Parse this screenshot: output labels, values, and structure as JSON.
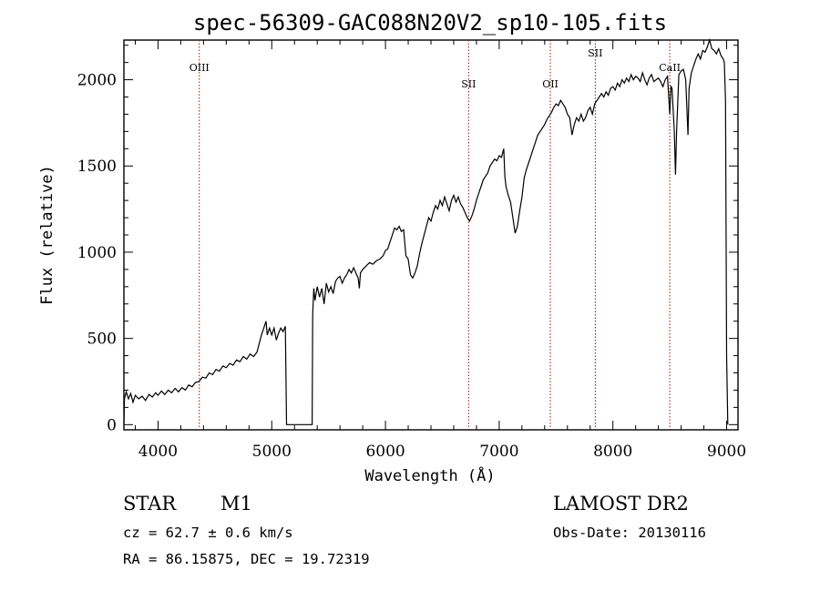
{
  "chart_data": {
    "type": "line",
    "title": "spec-56309-GAC088N20V2_sp10-105.fits",
    "xlabel": "Wavelength (Å)",
    "ylabel": "Flux (relative)",
    "xlim": [
      3700,
      9100
    ],
    "ylim": [
      -30,
      2230
    ],
    "xticks": [
      4000,
      5000,
      6000,
      7000,
      8000,
      9000
    ],
    "yticks": [
      0,
      500,
      1000,
      1500,
      2000
    ],
    "grid": false,
    "line_color": "#000000",
    "marker_color": "#8b1a1a",
    "series": [
      {
        "points": [
          [
            3700,
            10
          ],
          [
            3705,
            150
          ],
          [
            3720,
            190
          ],
          [
            3740,
            150
          ],
          [
            3760,
            180
          ],
          [
            3780,
            130
          ],
          [
            3800,
            170
          ],
          [
            3830,
            150
          ],
          [
            3860,
            165
          ],
          [
            3890,
            140
          ],
          [
            3920,
            175
          ],
          [
            3950,
            160
          ],
          [
            3980,
            185
          ],
          [
            4000,
            170
          ],
          [
            4030,
            195
          ],
          [
            4060,
            175
          ],
          [
            4090,
            200
          ],
          [
            4120,
            185
          ],
          [
            4150,
            210
          ],
          [
            4180,
            190
          ],
          [
            4210,
            215
          ],
          [
            4240,
            200
          ],
          [
            4270,
            230
          ],
          [
            4300,
            220
          ],
          [
            4330,
            245
          ],
          [
            4360,
            250
          ],
          [
            4390,
            275
          ],
          [
            4420,
            270
          ],
          [
            4450,
            300
          ],
          [
            4480,
            290
          ],
          [
            4510,
            320
          ],
          [
            4540,
            310
          ],
          [
            4570,
            340
          ],
          [
            4600,
            330
          ],
          [
            4630,
            355
          ],
          [
            4660,
            345
          ],
          [
            4690,
            375
          ],
          [
            4720,
            365
          ],
          [
            4750,
            395
          ],
          [
            4780,
            380
          ],
          [
            4810,
            410
          ],
          [
            4840,
            395
          ],
          [
            4870,
            420
          ],
          [
            4890,
            470
          ],
          [
            4910,
            520
          ],
          [
            4930,
            560
          ],
          [
            4950,
            600
          ],
          [
            4960,
            520
          ],
          [
            4980,
            560
          ],
          [
            5000,
            520
          ],
          [
            5020,
            560
          ],
          [
            5040,
            490
          ],
          [
            5060,
            530
          ],
          [
            5080,
            560
          ],
          [
            5100,
            540
          ],
          [
            5120,
            570
          ],
          [
            5130,
            0
          ],
          [
            5355,
            0
          ],
          [
            5360,
            640
          ],
          [
            5370,
            790
          ],
          [
            5380,
            720
          ],
          [
            5400,
            800
          ],
          [
            5420,
            740
          ],
          [
            5440,
            790
          ],
          [
            5460,
            700
          ],
          [
            5480,
            820
          ],
          [
            5500,
            770
          ],
          [
            5520,
            800
          ],
          [
            5540,
            760
          ],
          [
            5560,
            830
          ],
          [
            5580,
            850
          ],
          [
            5600,
            860
          ],
          [
            5620,
            820
          ],
          [
            5640,
            850
          ],
          [
            5660,
            870
          ],
          [
            5680,
            900
          ],
          [
            5700,
            880
          ],
          [
            5720,
            910
          ],
          [
            5740,
            880
          ],
          [
            5760,
            850
          ],
          [
            5770,
            790
          ],
          [
            5780,
            880
          ],
          [
            5800,
            900
          ],
          [
            5830,
            920
          ],
          [
            5860,
            940
          ],
          [
            5890,
            930
          ],
          [
            5920,
            950
          ],
          [
            5950,
            960
          ],
          [
            5980,
            980
          ],
          [
            6000,
            1010
          ],
          [
            6020,
            1020
          ],
          [
            6040,
            1060
          ],
          [
            6060,
            1100
          ],
          [
            6080,
            1140
          ],
          [
            6100,
            1130
          ],
          [
            6120,
            1150
          ],
          [
            6140,
            1120
          ],
          [
            6160,
            1130
          ],
          [
            6180,
            980
          ],
          [
            6200,
            960
          ],
          [
            6220,
            870
          ],
          [
            6240,
            850
          ],
          [
            6260,
            880
          ],
          [
            6280,
            920
          ],
          [
            6300,
            990
          ],
          [
            6320,
            1050
          ],
          [
            6340,
            1100
          ],
          [
            6360,
            1150
          ],
          [
            6380,
            1200
          ],
          [
            6400,
            1180
          ],
          [
            6420,
            1230
          ],
          [
            6440,
            1270
          ],
          [
            6460,
            1250
          ],
          [
            6480,
            1300
          ],
          [
            6500,
            1270
          ],
          [
            6520,
            1320
          ],
          [
            6540,
            1280
          ],
          [
            6560,
            1240
          ],
          [
            6580,
            1300
          ],
          [
            6600,
            1330
          ],
          [
            6620,
            1290
          ],
          [
            6640,
            1320
          ],
          [
            6660,
            1280
          ],
          [
            6680,
            1260
          ],
          [
            6700,
            1230
          ],
          [
            6720,
            1200
          ],
          [
            6740,
            1180
          ],
          [
            6760,
            1210
          ],
          [
            6780,
            1250
          ],
          [
            6800,
            1300
          ],
          [
            6820,
            1340
          ],
          [
            6840,
            1380
          ],
          [
            6860,
            1420
          ],
          [
            6880,
            1440
          ],
          [
            6900,
            1460
          ],
          [
            6920,
            1500
          ],
          [
            6940,
            1520
          ],
          [
            6960,
            1540
          ],
          [
            6980,
            1530
          ],
          [
            7000,
            1560
          ],
          [
            7020,
            1550
          ],
          [
            7040,
            1600
          ],
          [
            7050,
            1440
          ],
          [
            7060,
            1380
          ],
          [
            7080,
            1330
          ],
          [
            7100,
            1290
          ],
          [
            7120,
            1200
          ],
          [
            7140,
            1110
          ],
          [
            7160,
            1150
          ],
          [
            7180,
            1240
          ],
          [
            7200,
            1320
          ],
          [
            7220,
            1430
          ],
          [
            7240,
            1480
          ],
          [
            7260,
            1520
          ],
          [
            7280,
            1560
          ],
          [
            7300,
            1600
          ],
          [
            7320,
            1640
          ],
          [
            7340,
            1680
          ],
          [
            7360,
            1700
          ],
          [
            7380,
            1720
          ],
          [
            7400,
            1740
          ],
          [
            7420,
            1770
          ],
          [
            7440,
            1790
          ],
          [
            7460,
            1810
          ],
          [
            7480,
            1840
          ],
          [
            7500,
            1860
          ],
          [
            7520,
            1850
          ],
          [
            7540,
            1880
          ],
          [
            7560,
            1860
          ],
          [
            7580,
            1840
          ],
          [
            7600,
            1800
          ],
          [
            7620,
            1780
          ],
          [
            7640,
            1680
          ],
          [
            7660,
            1740
          ],
          [
            7680,
            1780
          ],
          [
            7700,
            1760
          ],
          [
            7720,
            1800
          ],
          [
            7740,
            1760
          ],
          [
            7760,
            1780
          ],
          [
            7780,
            1820
          ],
          [
            7800,
            1840
          ],
          [
            7820,
            1800
          ],
          [
            7840,
            1860
          ],
          [
            7860,
            1880
          ],
          [
            7880,
            1900
          ],
          [
            7900,
            1920
          ],
          [
            7920,
            1900
          ],
          [
            7940,
            1930
          ],
          [
            7960,
            1910
          ],
          [
            7980,
            1950
          ],
          [
            8000,
            1960
          ],
          [
            8020,
            1940
          ],
          [
            8040,
            1980
          ],
          [
            8060,
            1960
          ],
          [
            8080,
            2000
          ],
          [
            8100,
            1980
          ],
          [
            8120,
            2010
          ],
          [
            8140,
            1990
          ],
          [
            8160,
            2030
          ],
          [
            8180,
            2000
          ],
          [
            8200,
            2020
          ],
          [
            8220,
            2010
          ],
          [
            8240,
            1990
          ],
          [
            8260,
            2040
          ],
          [
            8280,
            2000
          ],
          [
            8300,
            1970
          ],
          [
            8320,
            2010
          ],
          [
            8340,
            2030
          ],
          [
            8360,
            1990
          ],
          [
            8380,
            2000
          ],
          [
            8400,
            2010
          ],
          [
            8420,
            1990
          ],
          [
            8440,
            1960
          ],
          [
            8460,
            2000
          ],
          [
            8480,
            2020
          ],
          [
            8500,
            1800
          ],
          [
            8510,
            1960
          ],
          [
            8520,
            1950
          ],
          [
            8540,
            1700
          ],
          [
            8550,
            1450
          ],
          [
            8560,
            1700
          ],
          [
            8580,
            2030
          ],
          [
            8600,
            2050
          ],
          [
            8620,
            2060
          ],
          [
            8640,
            2000
          ],
          [
            8660,
            1680
          ],
          [
            8670,
            1950
          ],
          [
            8690,
            2040
          ],
          [
            8710,
            2080
          ],
          [
            8730,
            2120
          ],
          [
            8750,
            2150
          ],
          [
            8770,
            2120
          ],
          [
            8790,
            2170
          ],
          [
            8810,
            2160
          ],
          [
            8830,
            2190
          ],
          [
            8850,
            2230
          ],
          [
            8870,
            2180
          ],
          [
            8890,
            2170
          ],
          [
            8910,
            2150
          ],
          [
            8930,
            2180
          ],
          [
            8950,
            2140
          ],
          [
            8970,
            2120
          ],
          [
            8980,
            2100
          ],
          [
            8990,
            1880
          ],
          [
            9000,
            400
          ],
          [
            9010,
            0
          ]
        ]
      }
    ],
    "lines": [
      {
        "label": "OIII",
        "x": 4363
      },
      {
        "label": "SII",
        "x": 6731
      },
      {
        "label": "OII",
        "x": 7450
      },
      {
        "label": "SII",
        "x": 7845
      },
      {
        "label": "CaII",
        "x": 8500
      }
    ]
  },
  "info": {
    "object_class": "STAR",
    "subclass": "M1",
    "survey": "LAMOST DR2",
    "cz": "cz = 62.7 ± 0.6 km/s",
    "obs_date": "Obs-Date: 20130116",
    "coords": "RA =  86.15875, DEC =  19.72319"
  }
}
